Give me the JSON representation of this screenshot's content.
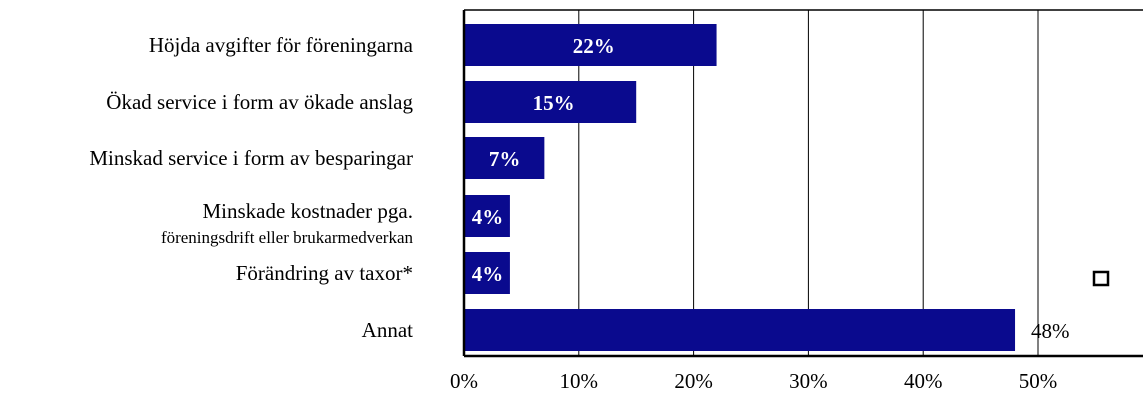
{
  "chart_data": {
    "type": "bar",
    "orientation": "horizontal",
    "categories": [
      [
        "Höjda avgifter för föreningarna"
      ],
      [
        "Ökad service i form av ökade anslag"
      ],
      [
        "Minskad service i form av besparingar"
      ],
      [
        "Minskade kostnader pga.",
        "föreningsdrift eller brukarmedverkan"
      ],
      [
        "Förändring av taxor*"
      ],
      [
        "Annat"
      ]
    ],
    "values": [
      22,
      15,
      7,
      4,
      4,
      48
    ],
    "data_labels": [
      "22%",
      "15%",
      "7%",
      "4%",
      "4%",
      "48%"
    ],
    "xlim": [
      0,
      50
    ],
    "xticks": [
      0,
      10,
      20,
      30,
      40,
      50
    ],
    "xtick_labels": [
      "0%",
      "10%",
      "20%",
      "30%",
      "40%",
      "50%"
    ],
    "grid": "vertical",
    "bar_color": "#0a0a8e",
    "legend": "right (empty marker)"
  }
}
